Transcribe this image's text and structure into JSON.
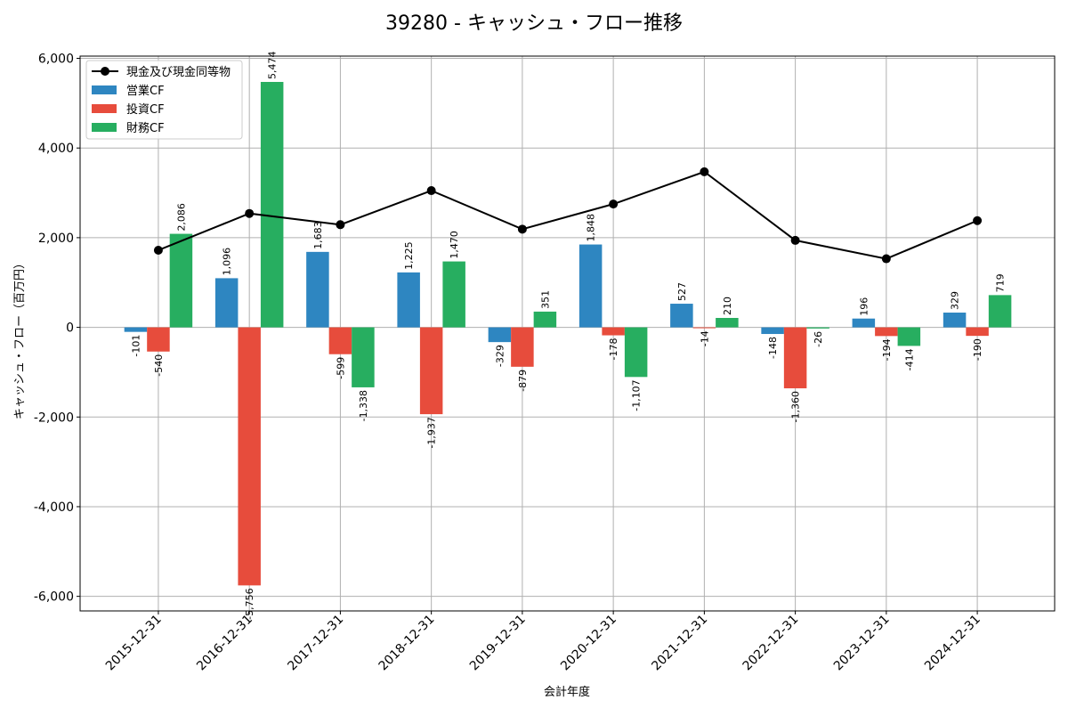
{
  "chart_data": {
    "type": "bar",
    "title": "39280 - キャッシュ・フロー推移",
    "xlabel": "会計年度",
    "ylabel": "キャッシュ・フロー（百万円）",
    "ylim": [
      -6325,
      6050
    ],
    "yticks": [
      -6000,
      -4000,
      -2000,
      0,
      2000,
      4000,
      6000
    ],
    "ytick_labels": [
      "-6,000",
      "-4,000",
      "-2,000",
      "0",
      "2,000",
      "4,000",
      "6,000"
    ],
    "grid": true,
    "legend_position": "top-left",
    "categories": [
      "2015-12-31",
      "2016-12-31",
      "2017-12-31",
      "2018-12-31",
      "2019-12-31",
      "2020-12-31",
      "2021-12-31",
      "2022-12-31",
      "2023-12-31",
      "2024-12-31"
    ],
    "series": [
      {
        "name": "営業CF",
        "kind": "bar",
        "color": "#2e86c1",
        "values": [
          -101,
          1096,
          1683,
          1225,
          -329,
          1848,
          527,
          -148,
          196,
          329
        ],
        "labels": [
          "-101",
          "1,096",
          "1,683",
          "1,225",
          "-329",
          "1,848",
          "527",
          "-148",
          "196",
          "329"
        ]
      },
      {
        "name": "投資CF",
        "kind": "bar",
        "color": "#e74c3c",
        "values": [
          -540,
          -5756,
          -599,
          -1937,
          -879,
          -178,
          -14,
          -1360,
          -194,
          -190
        ],
        "labels": [
          "-540",
          "-5,756",
          "-599",
          "-1,937",
          "-879",
          "-178",
          "-14",
          "-1,360",
          "-194",
          "-190"
        ]
      },
      {
        "name": "財務CF",
        "kind": "bar",
        "color": "#27ae60",
        "values": [
          2086,
          5474,
          -1338,
          1470,
          351,
          -1107,
          210,
          -26,
          -414,
          719
        ],
        "labels": [
          "2,086",
          "5,474",
          "-1,338",
          "1,470",
          "351",
          "-1,107",
          "210",
          "-26",
          "-414",
          "719"
        ]
      },
      {
        "name": "現金及び現金同等物",
        "kind": "line",
        "color": "#000000",
        "values": [
          1720,
          2540,
          2290,
          3050,
          2190,
          2750,
          3470,
          1940,
          1530,
          2380
        ]
      }
    ]
  }
}
